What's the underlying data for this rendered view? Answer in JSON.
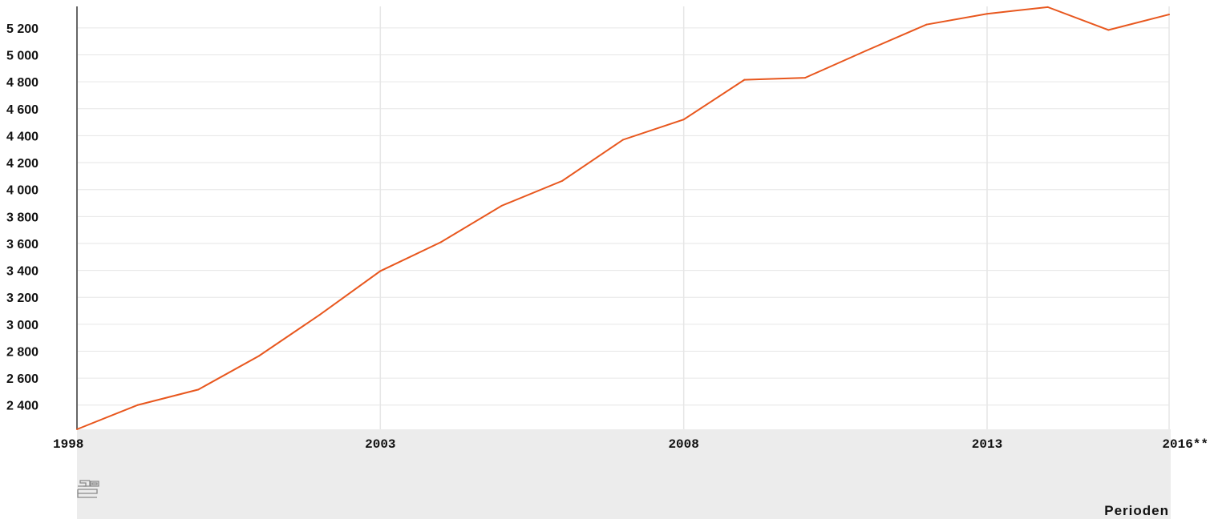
{
  "chart_data": {
    "type": "line",
    "title": "",
    "xlabel": "Perioden",
    "ylabel": "",
    "x": [
      "1998",
      "1999",
      "2000",
      "2001",
      "2002",
      "2003",
      "2004",
      "2005",
      "2006",
      "2007",
      "2008",
      "2009",
      "2010",
      "2011",
      "2012",
      "2013",
      "2014",
      "2015",
      "2016**"
    ],
    "series": [
      {
        "values": [
          2220,
          2400,
          2515,
          2765,
          3070,
          3395,
          3610,
          3880,
          4065,
          4370,
          4520,
          4815,
          4830,
          5030,
          5225,
          5305,
          5355,
          5185,
          5300
        ],
        "color": "#e8571e"
      }
    ],
    "ylim": [
      2220,
      5360
    ],
    "yticks": [
      2400,
      2600,
      2800,
      3000,
      3200,
      3400,
      3600,
      3800,
      4000,
      4200,
      4400,
      4600,
      4800,
      5000,
      5200
    ],
    "ytick_labels": [
      "2 400",
      "2 600",
      "2 800",
      "3 000",
      "3 200",
      "3 400",
      "3 600",
      "3 800",
      "4 000",
      "4 200",
      "4 400",
      "4 600",
      "4 800",
      "5 000",
      "5 200"
    ],
    "xticks_shown": [
      "1998",
      "2003",
      "2008",
      "2013",
      "2016**"
    ],
    "grid": true,
    "logo": "cbs-logo"
  }
}
